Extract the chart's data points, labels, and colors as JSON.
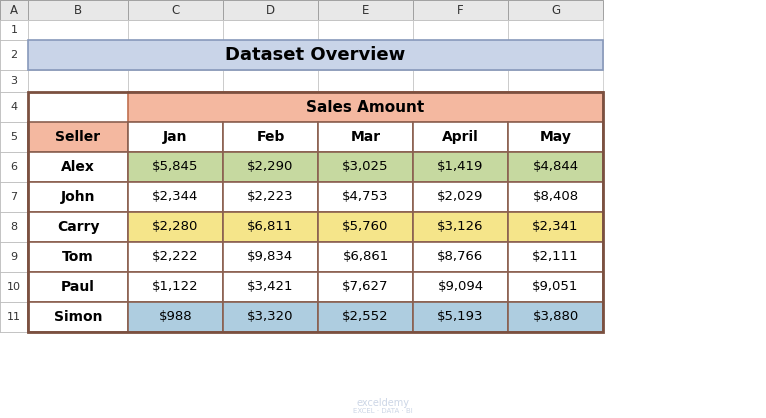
{
  "title": "Dataset Overview",
  "title_bg": "#c9d4e8",
  "sales_amount_header": "Sales Amount",
  "sales_amount_bg": "#f4b8a0",
  "col_headers": [
    "Seller",
    "Jan",
    "Feb",
    "Mar",
    "April",
    "May"
  ],
  "seller_header_bg": "#f4b8a0",
  "col_header_bg": "#ffffff",
  "rows": [
    {
      "seller": "Alex",
      "values": [
        "$5,845",
        "$2,290",
        "$3,025",
        "$1,419",
        "$4,844"
      ],
      "bg": "#c6d9a0"
    },
    {
      "seller": "John",
      "values": [
        "$2,344",
        "$2,223",
        "$4,753",
        "$2,029",
        "$8,408"
      ],
      "bg": "#ffffff"
    },
    {
      "seller": "Carry",
      "values": [
        "$2,280",
        "$6,811",
        "$5,760",
        "$3,126",
        "$2,341"
      ],
      "bg": "#f5e58a"
    },
    {
      "seller": "Tom",
      "values": [
        "$2,222",
        "$9,834",
        "$6,861",
        "$8,766",
        "$2,111"
      ],
      "bg": "#ffffff"
    },
    {
      "seller": "Paul",
      "values": [
        "$1,122",
        "$3,421",
        "$7,627",
        "$9,094",
        "$9,051"
      ],
      "bg": "#ffffff"
    },
    {
      "seller": "Simon",
      "values": [
        "$988",
        "$3,320",
        "$2,552",
        "$5,193",
        "$3,880"
      ],
      "bg": "#aecde0"
    }
  ],
  "excel_row_labels": [
    "1",
    "2",
    "3",
    "4",
    "5",
    "6",
    "7",
    "8",
    "9",
    "10",
    "11"
  ],
  "excel_col_labels": [
    "A",
    "B",
    "C",
    "D",
    "E",
    "F",
    "G"
  ],
  "grid_color": "#a0a0a0",
  "header_row_bg": "#e8e8e8",
  "excel_bg": "#f0f0f0",
  "watermark_color": "#c0cce0"
}
